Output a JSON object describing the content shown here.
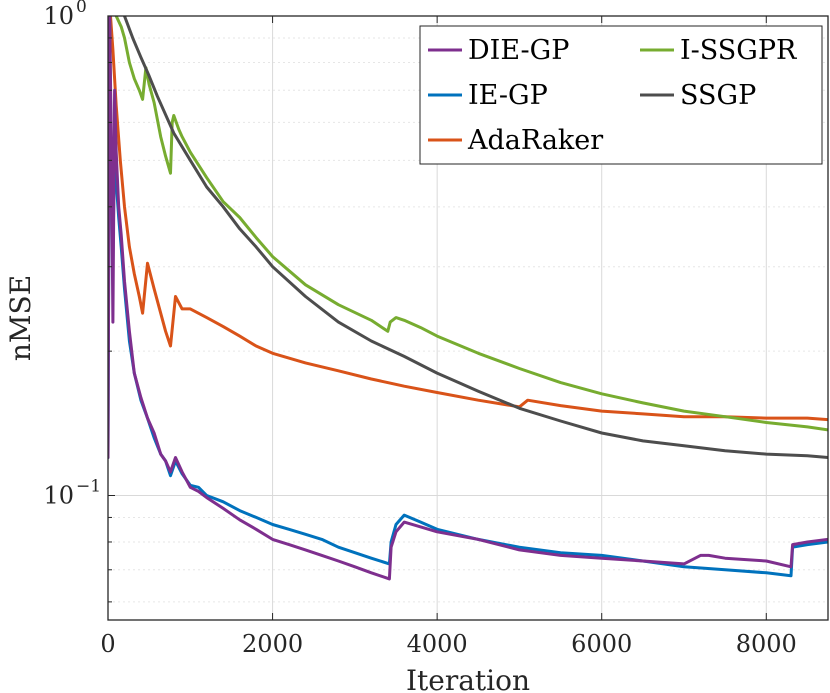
{
  "chart_data": {
    "type": "line",
    "title": "",
    "xlabel": "Iteration",
    "ylabel": "nMSE",
    "xlim": [
      0,
      8750
    ],
    "ylim": [
      0.055,
      1.0
    ],
    "yscale": "log",
    "grid": true,
    "legend_position": "top-right",
    "x_ticks": [
      0,
      2000,
      4000,
      6000,
      8000
    ],
    "x_tick_labels": [
      "0",
      "2000",
      "4000",
      "6000",
      "8000"
    ],
    "y_ticks": [
      0.1,
      1.0
    ],
    "y_tick_labels": [
      {
        "base": "10",
        "exp": "−1"
      },
      {
        "base": "10",
        "exp": "0"
      }
    ],
    "series": [
      {
        "name": "DIE-GP",
        "color": "#7E2F8E",
        "x": [
          0,
          20,
          40,
          60,
          80,
          100,
          130,
          160,
          200,
          260,
          320,
          400,
          480,
          560,
          640,
          700,
          760,
          820,
          900,
          1000,
          1100,
          1200,
          1400,
          1600,
          1800,
          2000,
          2200,
          2400,
          2600,
          2800,
          3000,
          3200,
          3420,
          3440,
          3500,
          3600,
          3800,
          4000,
          4500,
          5000,
          5500,
          6000,
          6500,
          7000,
          7200,
          7300,
          7500,
          8000,
          8300,
          8320,
          8500,
          8750
        ],
        "values": [
          0.12,
          1.0,
          0.55,
          0.23,
          0.7,
          0.52,
          0.4,
          0.35,
          0.28,
          0.22,
          0.18,
          0.16,
          0.145,
          0.135,
          0.122,
          0.118,
          0.112,
          0.12,
          0.112,
          0.104,
          0.102,
          0.099,
          0.094,
          0.089,
          0.085,
          0.081,
          0.079,
          0.077,
          0.075,
          0.073,
          0.071,
          0.069,
          0.067,
          0.078,
          0.084,
          0.088,
          0.086,
          0.084,
          0.081,
          0.077,
          0.075,
          0.074,
          0.073,
          0.072,
          0.075,
          0.075,
          0.074,
          0.073,
          0.071,
          0.079,
          0.08,
          0.081
        ]
      },
      {
        "name": "IE-GP",
        "color": "#0072BD",
        "x": [
          0,
          20,
          40,
          60,
          80,
          100,
          130,
          160,
          200,
          260,
          320,
          400,
          480,
          560,
          640,
          700,
          760,
          820,
          900,
          1000,
          1100,
          1200,
          1400,
          1600,
          1800,
          2000,
          2200,
          2400,
          2600,
          2800,
          3000,
          3200,
          3420,
          3440,
          3500,
          3600,
          3800,
          4000,
          4500,
          5000,
          5500,
          6000,
          6500,
          7000,
          7500,
          8000,
          8300,
          8320,
          8500,
          8750
        ],
        "values": [
          0.12,
          1.0,
          0.5,
          0.3,
          0.58,
          0.45,
          0.38,
          0.33,
          0.27,
          0.21,
          0.18,
          0.158,
          0.145,
          0.132,
          0.122,
          0.118,
          0.11,
          0.118,
          0.111,
          0.105,
          0.104,
          0.1,
          0.097,
          0.093,
          0.09,
          0.087,
          0.085,
          0.083,
          0.081,
          0.078,
          0.076,
          0.074,
          0.072,
          0.08,
          0.087,
          0.091,
          0.088,
          0.085,
          0.081,
          0.078,
          0.076,
          0.075,
          0.073,
          0.071,
          0.07,
          0.069,
          0.068,
          0.078,
          0.079,
          0.08
        ]
      },
      {
        "name": "AdaRaker",
        "color": "#D95319",
        "x": [
          0,
          30,
          60,
          100,
          150,
          200,
          260,
          320,
          380,
          420,
          480,
          560,
          640,
          700,
          760,
          820,
          900,
          1000,
          1200,
          1400,
          1600,
          1800,
          2000,
          2400,
          2800,
          3200,
          3600,
          4000,
          4500,
          5000,
          5100,
          5500,
          6000,
          6500,
          7000,
          7500,
          8000,
          8500,
          8750
        ],
        "values": [
          1.0,
          1.0,
          0.85,
          0.65,
          0.5,
          0.4,
          0.33,
          0.29,
          0.26,
          0.24,
          0.305,
          0.27,
          0.24,
          0.22,
          0.205,
          0.26,
          0.245,
          0.245,
          0.235,
          0.225,
          0.215,
          0.205,
          0.198,
          0.189,
          0.182,
          0.175,
          0.169,
          0.164,
          0.158,
          0.153,
          0.158,
          0.154,
          0.15,
          0.148,
          0.146,
          0.146,
          0.145,
          0.145,
          0.144
        ]
      },
      {
        "name": "I-SSGPR",
        "color": "#77AC30",
        "x": [
          100,
          160,
          200,
          260,
          320,
          380,
          420,
          460,
          500,
          560,
          640,
          700,
          760,
          780,
          800,
          860,
          900,
          1000,
          1200,
          1400,
          1600,
          1800,
          2000,
          2400,
          2800,
          3200,
          3400,
          3430,
          3500,
          3600,
          3800,
          4000,
          4500,
          5000,
          5500,
          6000,
          6500,
          7000,
          7500,
          8000,
          8500,
          8750
        ],
        "values": [
          1.0,
          0.95,
          0.9,
          0.8,
          0.74,
          0.7,
          0.67,
          0.78,
          0.72,
          0.66,
          0.56,
          0.51,
          0.47,
          0.6,
          0.62,
          0.58,
          0.56,
          0.52,
          0.46,
          0.41,
          0.38,
          0.345,
          0.315,
          0.275,
          0.25,
          0.232,
          0.22,
          0.23,
          0.235,
          0.232,
          0.224,
          0.215,
          0.198,
          0.184,
          0.172,
          0.163,
          0.156,
          0.15,
          0.146,
          0.142,
          0.139,
          0.137
        ]
      },
      {
        "name": "SSGP",
        "color": "#4D4D4D",
        "x": [
          200,
          300,
          400,
          500,
          600,
          800,
          1000,
          1200,
          1400,
          1600,
          1800,
          2000,
          2400,
          2800,
          3200,
          3600,
          4000,
          4500,
          5000,
          5500,
          6000,
          6500,
          7000,
          7500,
          8000,
          8500,
          8750
        ],
        "values": [
          1.0,
          0.9,
          0.82,
          0.75,
          0.68,
          0.57,
          0.5,
          0.44,
          0.4,
          0.36,
          0.33,
          0.3,
          0.26,
          0.23,
          0.21,
          0.195,
          0.18,
          0.165,
          0.152,
          0.143,
          0.135,
          0.13,
          0.127,
          0.124,
          0.122,
          0.121,
          0.12
        ]
      }
    ]
  }
}
